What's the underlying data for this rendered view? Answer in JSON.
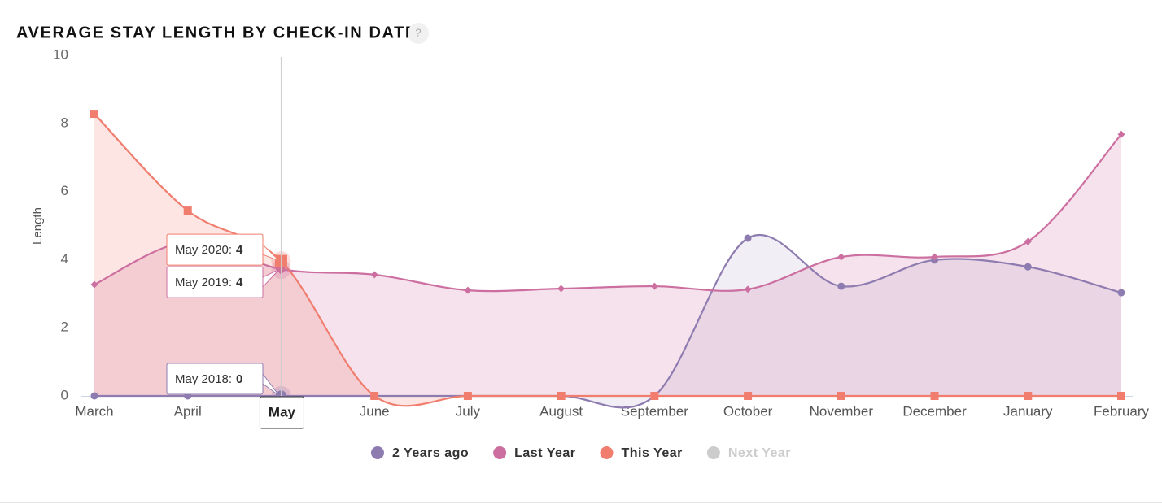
{
  "chart_data": {
    "type": "areaspline",
    "title": "AVERAGE STAY LENGTH BY CHECK-IN DATE",
    "help_icon": "?",
    "y_label": "Length",
    "categories": [
      "March",
      "April",
      "May",
      "June",
      "July",
      "August",
      "September",
      "October",
      "November",
      "December",
      "January",
      "February"
    ],
    "ylim": [
      0,
      10
    ],
    "yticks": [
      0,
      2,
      4,
      6,
      8,
      10
    ],
    "series": [
      {
        "name": "2 Years ago",
        "color": "#8e7cb0",
        "marker": "circle",
        "visible": true,
        "values": [
          0,
          0,
          0,
          0,
          0,
          0,
          0,
          4.63,
          3.22,
          3.99,
          3.79,
          3.03
        ]
      },
      {
        "name": "Last Year",
        "color": "#cc6fa0",
        "marker": "diamond",
        "visible": true,
        "values": [
          3.27,
          4.53,
          3.72,
          3.56,
          3.1,
          3.15,
          3.22,
          3.13,
          4.08,
          4.08,
          4.53,
          7.68
        ]
      },
      {
        "name": "This Year",
        "color": "#f07d6e",
        "marker": "square",
        "visible": true,
        "values": [
          8.28,
          5.44,
          3.96,
          0,
          0,
          0,
          0,
          0,
          0,
          0,
          0,
          0
        ]
      },
      {
        "name": "Next Year",
        "color": "#cccccc",
        "marker": "circle",
        "visible": false,
        "values": [
          null,
          null,
          null,
          null,
          null,
          null,
          null,
          null,
          null,
          null,
          null,
          null
        ]
      }
    ],
    "hover_index": 2,
    "tooltips": [
      {
        "label": "May 2020:",
        "value": 4,
        "series": 2
      },
      {
        "label": "May 2019:",
        "value": 4,
        "series": 1
      },
      {
        "label": "May 2018:",
        "value": 0,
        "series": 0
      }
    ]
  }
}
